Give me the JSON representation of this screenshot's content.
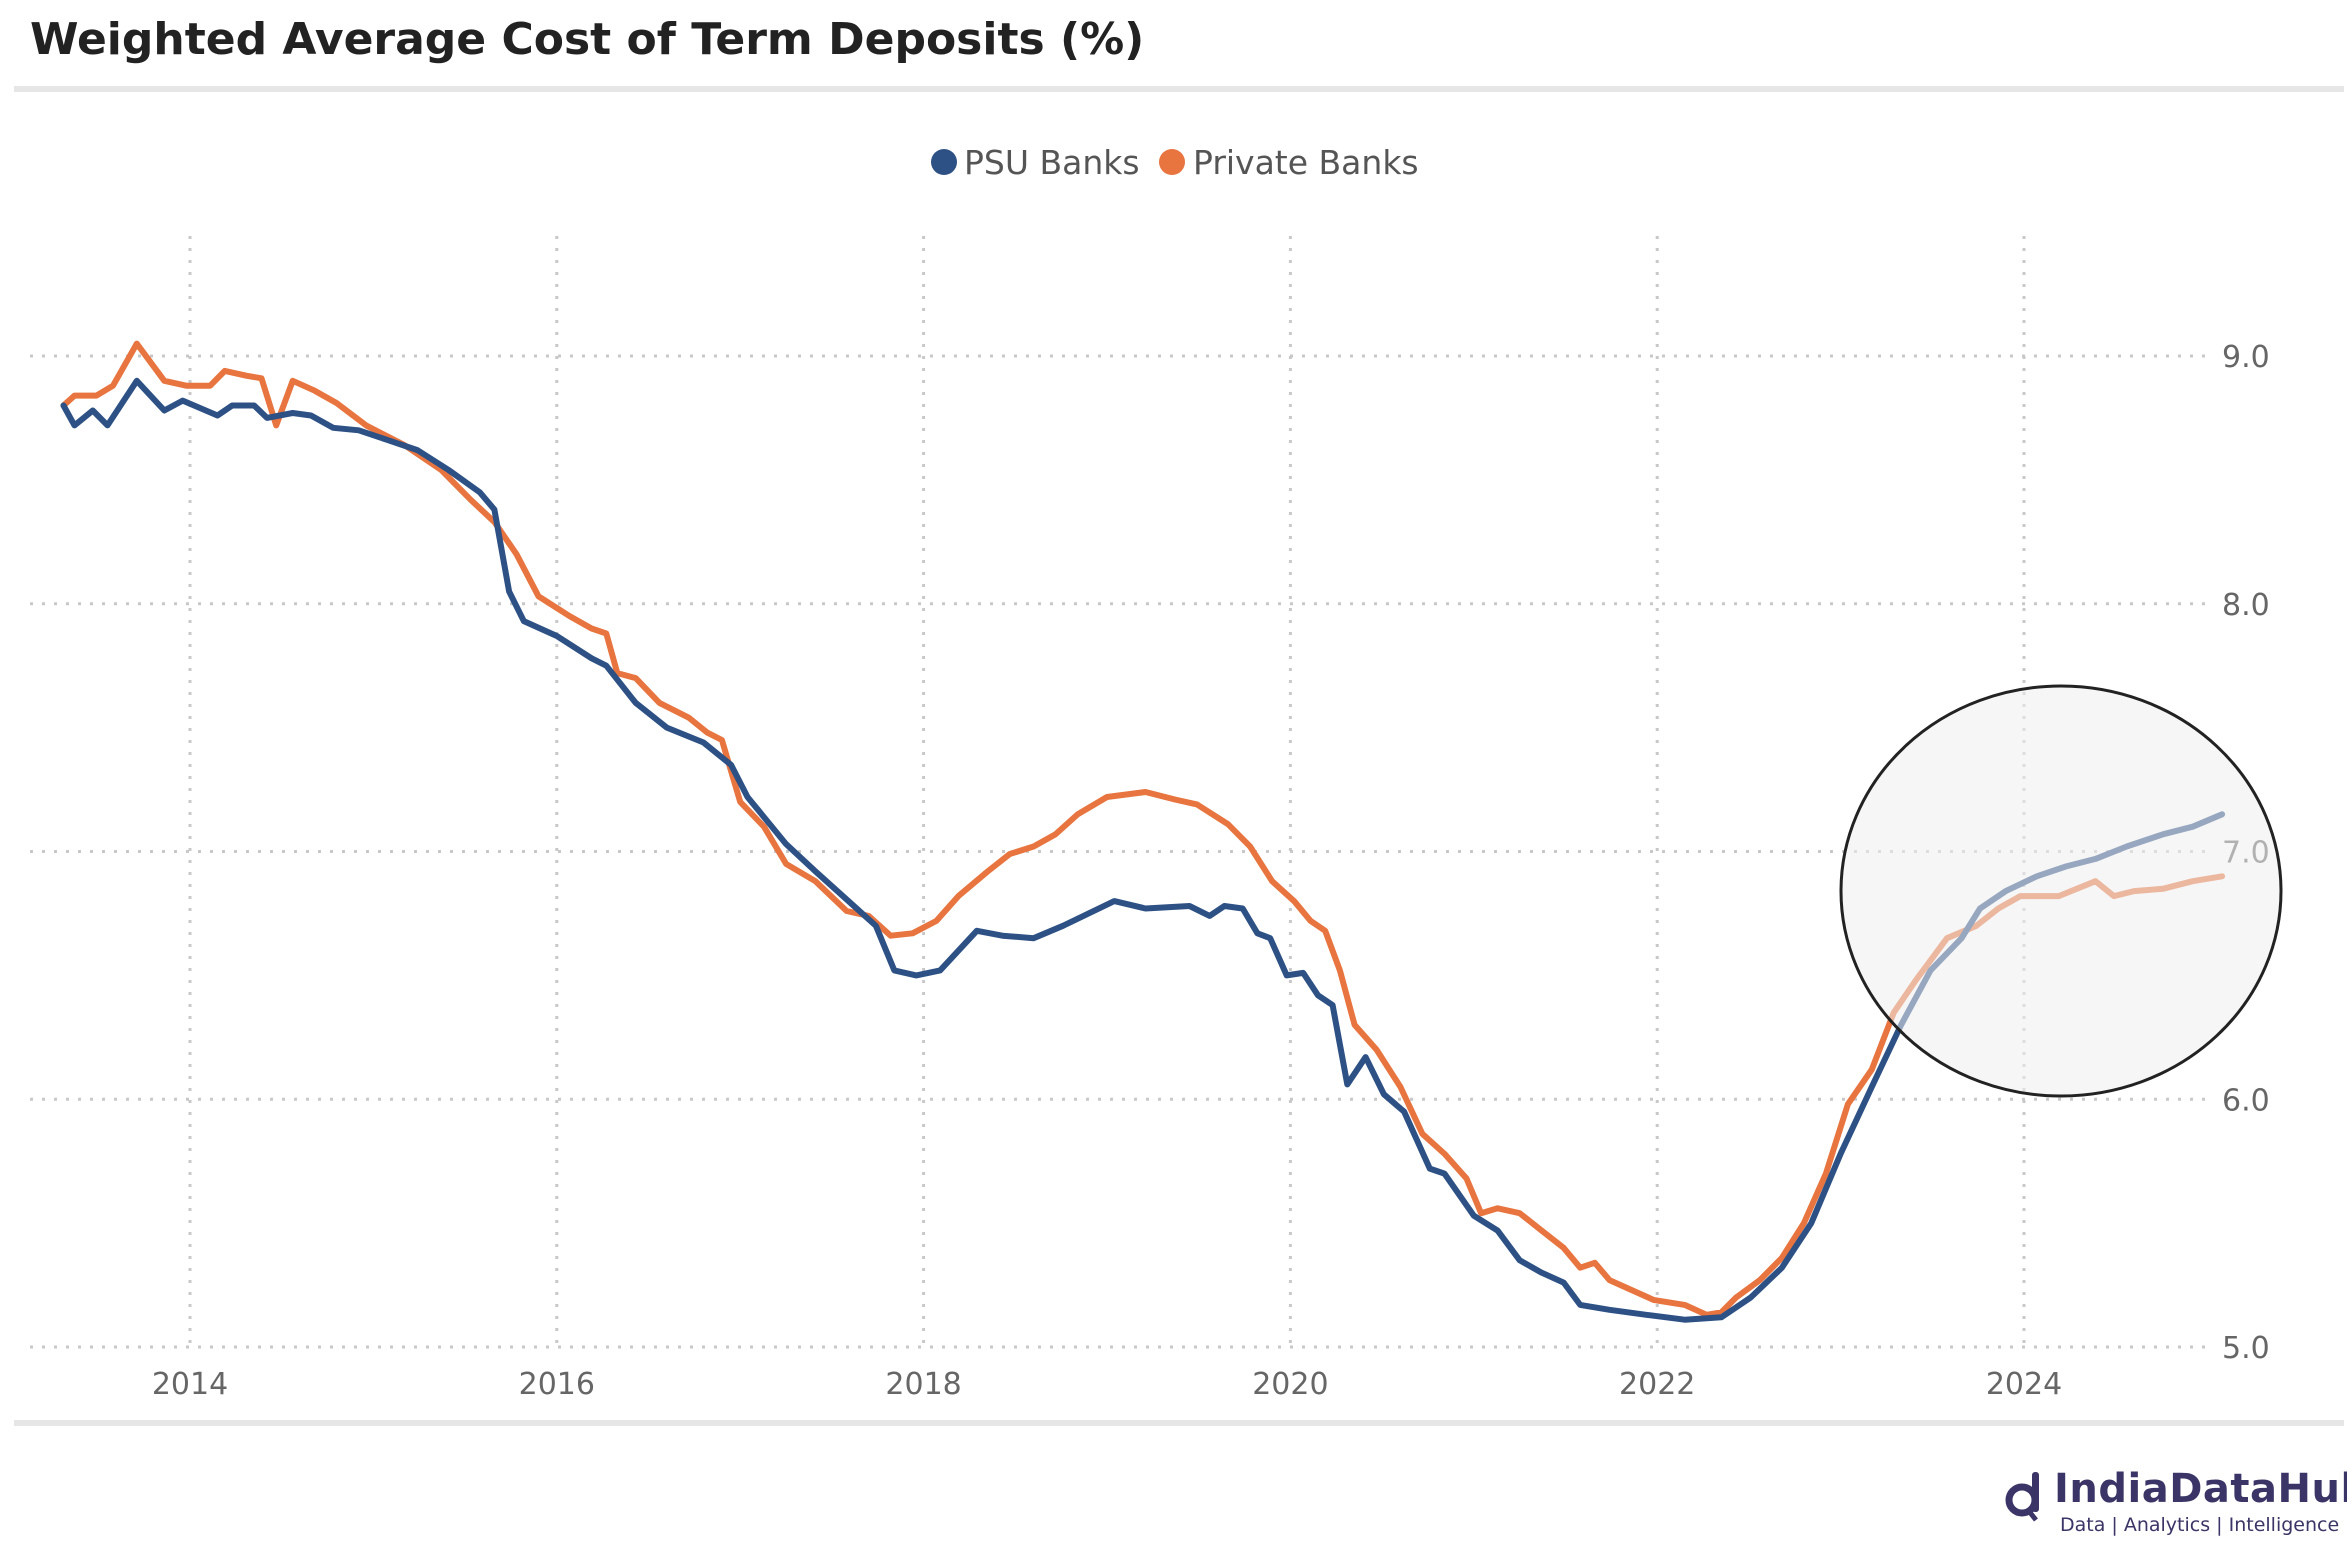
{
  "title": "Weighted Average Cost of Term Deposits (%)",
  "logo": {
    "name": "IndiaDataHub",
    "tagline": "Data | Analytics | Intelligence"
  },
  "chart_data": {
    "type": "line",
    "title": "Weighted Average Cost of Term Deposits (%)",
    "xlabel": "",
    "ylabel": "",
    "xlim": [
      2013.25,
      2025.25
    ],
    "ylim": [
      5.0,
      9.6
    ],
    "xticks": [
      2014,
      2016,
      2018,
      2020,
      2022,
      2024
    ],
    "xtick_labels": [
      "2014",
      "2016",
      "2018",
      "2020",
      "2022",
      "2024"
    ],
    "yticks": [
      5.0,
      6.0,
      7.0,
      8.0,
      9.0
    ],
    "ytick_labels": [
      "5.0",
      "6.0",
      "7.0",
      "8.0",
      "9.0"
    ],
    "grid": true,
    "legend_position": "top-center",
    "annotation": "circle highlighting 2023.5-2025 divergence",
    "series": [
      {
        "name": "PSU Banks",
        "color": "#2e5185",
        "x": [
          2013.31,
          2013.37,
          2013.47,
          2013.55,
          2013.71,
          2013.86,
          2013.96,
          2014.15,
          2014.23,
          2014.35,
          2014.42,
          2014.56,
          2014.66,
          2014.78,
          2014.92,
          2015.08,
          2015.24,
          2015.41,
          2015.58,
          2015.66,
          2015.74,
          2015.82,
          2016.0,
          2016.19,
          2016.27,
          2016.43,
          2016.6,
          2016.8,
          2016.95,
          2017.04,
          2017.25,
          2017.41,
          2017.62,
          2017.74,
          2017.84,
          2017.96,
          2018.09,
          2018.29,
          2018.43,
          2018.6,
          2018.76,
          2019.04,
          2019.21,
          2019.45,
          2019.56,
          2019.64,
          2019.74,
          2019.82,
          2019.89,
          2019.98,
          2020.07,
          2020.15,
          2020.23,
          2020.31,
          2020.41,
          2020.51,
          2020.62,
          2020.76,
          2020.84,
          2021.0,
          2021.13,
          2021.25,
          2021.37,
          2021.49,
          2021.58,
          2021.74,
          2021.94,
          2022.15,
          2022.35,
          2022.51,
          2022.68,
          2022.84,
          2023.0,
          2023.17,
          2023.33,
          2023.49,
          2023.66,
          2023.76,
          2023.9,
          2024.07,
          2024.23,
          2024.39,
          2024.56,
          2024.76,
          2024.92,
          2025.08
        ],
        "values": [
          8.8,
          8.72,
          8.78,
          8.72,
          8.9,
          8.78,
          8.82,
          8.76,
          8.8,
          8.8,
          8.75,
          8.77,
          8.76,
          8.71,
          8.7,
          8.66,
          8.62,
          8.54,
          8.45,
          8.38,
          8.05,
          7.93,
          7.87,
          7.78,
          7.75,
          7.6,
          7.5,
          7.44,
          7.35,
          7.22,
          7.03,
          6.92,
          6.78,
          6.7,
          6.52,
          6.5,
          6.52,
          6.68,
          6.66,
          6.65,
          6.7,
          6.8,
          6.77,
          6.78,
          6.74,
          6.78,
          6.77,
          6.67,
          6.65,
          6.5,
          6.51,
          6.42,
          6.38,
          6.06,
          6.17,
          6.02,
          5.95,
          5.72,
          5.7,
          5.53,
          5.47,
          5.35,
          5.3,
          5.26,
          5.17,
          5.15,
          5.13,
          5.11,
          5.12,
          5.2,
          5.32,
          5.5,
          5.78,
          6.05,
          6.3,
          6.52,
          6.65,
          6.77,
          6.84,
          6.9,
          6.94,
          6.97,
          7.02,
          7.07,
          7.1,
          7.15
        ]
      },
      {
        "name": "Private Banks",
        "color": "#e8743f",
        "x": [
          2013.31,
          2013.37,
          2013.49,
          2013.58,
          2013.71,
          2013.86,
          2013.98,
          2014.11,
          2014.19,
          2014.31,
          2014.39,
          2014.47,
          2014.56,
          2014.68,
          2014.8,
          2014.96,
          2015.17,
          2015.37,
          2015.53,
          2015.66,
          2015.78,
          2015.9,
          2016.07,
          2016.19,
          2016.27,
          2016.33,
          2016.43,
          2016.56,
          2016.72,
          2016.82,
          2016.9,
          2017.0,
          2017.13,
          2017.25,
          2017.41,
          2017.58,
          2017.7,
          2017.82,
          2017.94,
          2018.07,
          2018.19,
          2018.35,
          2018.47,
          2018.6,
          2018.72,
          2018.84,
          2019.0,
          2019.21,
          2019.37,
          2019.49,
          2019.66,
          2019.78,
          2019.9,
          2020.02,
          2020.11,
          2020.19,
          2020.27,
          2020.35,
          2020.47,
          2020.6,
          2020.72,
          2020.84,
          2020.96,
          2021.04,
          2021.13,
          2021.25,
          2021.37,
          2021.49,
          2021.58,
          2021.66,
          2021.74,
          2021.86,
          2021.98,
          2022.15,
          2022.27,
          2022.35,
          2022.43,
          2022.56,
          2022.68,
          2022.8,
          2022.92,
          2023.04,
          2023.17,
          2023.29,
          2023.41,
          2023.58,
          2023.74,
          2023.86,
          2023.98,
          2024.19,
          2024.39,
          2024.49,
          2024.6,
          2024.76,
          2024.92,
          2025.08
        ],
        "values": [
          8.8,
          8.84,
          8.84,
          8.88,
          9.05,
          8.9,
          8.88,
          8.88,
          8.94,
          8.92,
          8.91,
          8.72,
          8.9,
          8.86,
          8.81,
          8.72,
          8.64,
          8.54,
          8.42,
          8.33,
          8.2,
          8.03,
          7.95,
          7.9,
          7.88,
          7.72,
          7.7,
          7.6,
          7.54,
          7.48,
          7.45,
          7.2,
          7.1,
          6.95,
          6.88,
          6.76,
          6.74,
          6.66,
          6.67,
          6.72,
          6.82,
          6.92,
          6.99,
          7.02,
          7.07,
          7.15,
          7.22,
          7.24,
          7.21,
          7.19,
          7.11,
          7.02,
          6.88,
          6.8,
          6.72,
          6.68,
          6.52,
          6.3,
          6.2,
          6.05,
          5.86,
          5.78,
          5.68,
          5.54,
          5.56,
          5.54,
          5.47,
          5.4,
          5.32,
          5.34,
          5.27,
          5.23,
          5.19,
          5.17,
          5.13,
          5.14,
          5.2,
          5.27,
          5.36,
          5.5,
          5.7,
          5.98,
          6.12,
          6.35,
          6.48,
          6.65,
          6.7,
          6.77,
          6.82,
          6.82,
          6.88,
          6.82,
          6.84,
          6.85,
          6.88,
          6.9
        ]
      }
    ]
  }
}
